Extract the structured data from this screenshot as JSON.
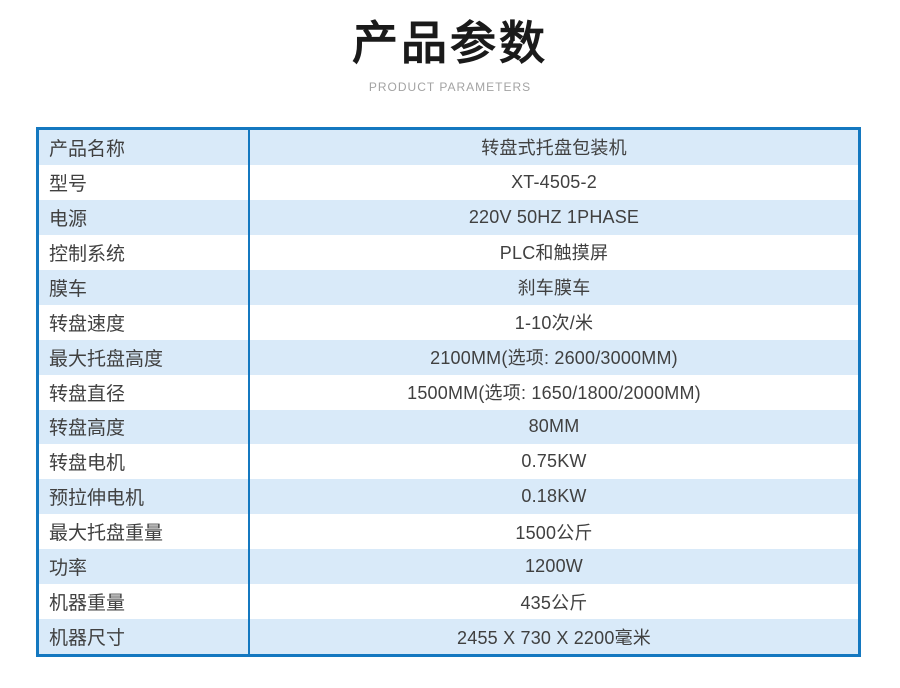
{
  "page": {
    "title": "产品参数",
    "subtitle": "PRODUCT PARAMETERS"
  },
  "colors": {
    "border": "#1478c0",
    "row_alt": "#d9eaf9",
    "text": "#404040",
    "title": "#1a1a1a",
    "subtitle": "#a3a3a3",
    "background": "#ffffff"
  },
  "table": {
    "rows": [
      {
        "label": "产品名称",
        "value": "转盘式托盘包装机"
      },
      {
        "label": "型号",
        "value": "XT-4505-2"
      },
      {
        "label": "电源",
        "value": "220V 50HZ 1PHASE"
      },
      {
        "label": "控制系统",
        "value": "PLC和触摸屏"
      },
      {
        "label": "膜车",
        "value": "刹车膜车"
      },
      {
        "label": "转盘速度",
        "value": "1-10次/米"
      },
      {
        "label": "最大托盘高度",
        "value": "2100MM(选项: 2600/3000MM)"
      },
      {
        "label": "转盘直径",
        "value": "1500MM(选项: 1650/1800/2000MM)"
      },
      {
        "label": "转盘高度",
        "value": "80MM"
      },
      {
        "label": "转盘电机",
        "value": "0.75KW"
      },
      {
        "label": "预拉伸电机",
        "value": "0.18KW"
      },
      {
        "label": "最大托盘重量",
        "value": "1500公斤"
      },
      {
        "label": "功率",
        "value": "1200W"
      },
      {
        "label": "机器重量",
        "value": "435公斤"
      },
      {
        "label": "机器尺寸",
        "value": "2455 X 730 X 2200毫米"
      }
    ]
  }
}
